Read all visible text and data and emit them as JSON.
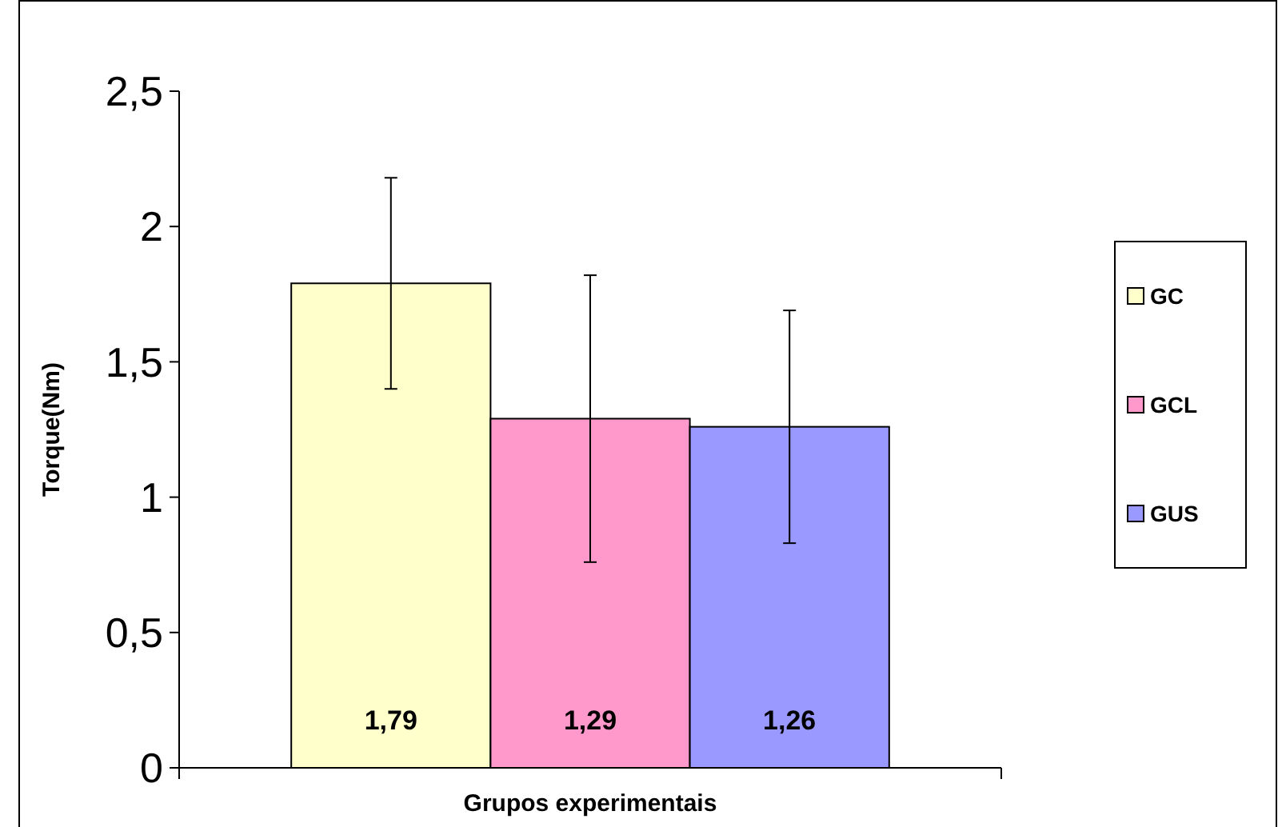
{
  "chart_data": {
    "type": "bar",
    "xlabel": "Grupos experimentais",
    "ylabel": "Torque(Nm)",
    "categories": [
      null
    ],
    "series": [
      {
        "name": "GC",
        "color": "#ffffcc",
        "values": [
          1.79
        ],
        "errors": [
          0.39
        ],
        "value_labels": [
          "1,79"
        ]
      },
      {
        "name": "GCL",
        "color": "#ff99cc",
        "values": [
          1.29
        ],
        "errors": [
          0.53
        ],
        "value_labels": [
          "1,29"
        ]
      },
      {
        "name": "GUS",
        "color": "#9999ff",
        "values": [
          1.26
        ],
        "errors": [
          0.43
        ],
        "value_labels": [
          "1,26"
        ]
      }
    ],
    "ylim": [
      0,
      2.5
    ],
    "yticks": [
      0,
      {
        "value": 0.5,
        "label": "0,5"
      },
      1,
      {
        "value": 1.5,
        "label": "1,5"
      },
      2,
      {
        "value": 2.5,
        "label": "2,5"
      }
    ],
    "grid": false,
    "legend": "right"
  }
}
